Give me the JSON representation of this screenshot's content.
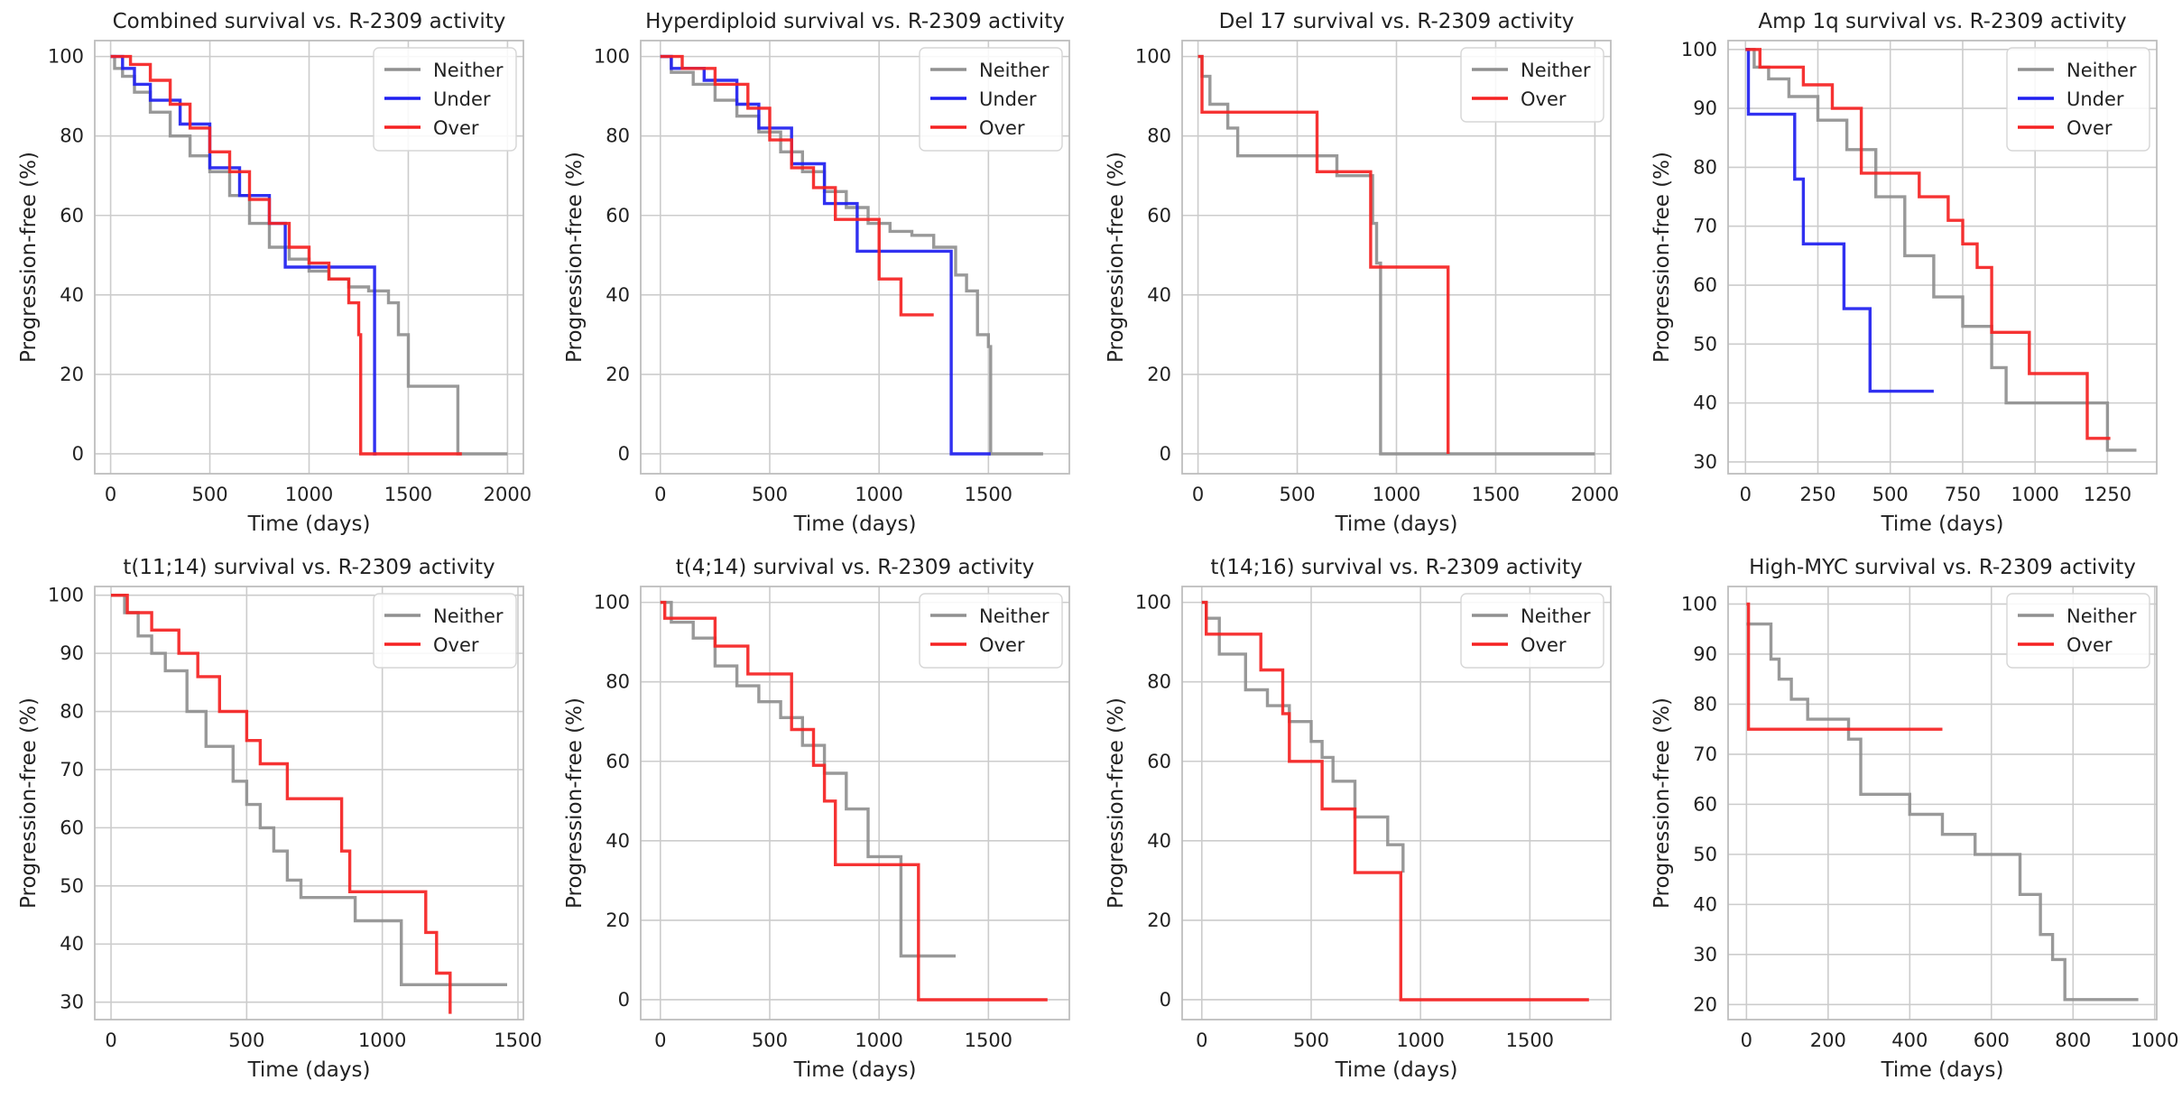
{
  "colors": {
    "Neither": "#909090",
    "Under": "#1f1ff0",
    "Over": "#f52222",
    "grid": "#cccccc",
    "frame": "#bdbdbd"
  },
  "chart_data": [
    {
      "type": "line",
      "step": true,
      "title": "Combined survival vs. R-2309 activity",
      "xlabel": "Time (days)",
      "ylabel": "Progression-free (%)",
      "xlim": [
        -80,
        2080
      ],
      "ylim": [
        -5,
        104
      ],
      "xticks": [
        0,
        500,
        1000,
        1500,
        2000
      ],
      "yticks": [
        0,
        20,
        40,
        60,
        80,
        100
      ],
      "legend": "top-right",
      "grid": true,
      "series": [
        {
          "name": "Neither",
          "x": [
            0,
            20,
            60,
            120,
            200,
            300,
            400,
            500,
            600,
            700,
            800,
            900,
            1000,
            1100,
            1200,
            1300,
            1400,
            1450,
            1500,
            1750,
            2000
          ],
          "y": [
            100,
            97,
            95,
            91,
            86,
            80,
            75,
            71,
            65,
            58,
            52,
            49,
            46,
            44,
            42,
            41,
            38,
            30,
            17,
            0,
            0
          ]
        },
        {
          "name": "Under",
          "x": [
            0,
            60,
            120,
            200,
            350,
            500,
            650,
            800,
            880,
            1330,
            1340
          ],
          "y": [
            100,
            97,
            93,
            89,
            83,
            72,
            65,
            58,
            47,
            0,
            0
          ]
        },
        {
          "name": "Over",
          "x": [
            0,
            100,
            200,
            300,
            400,
            500,
            600,
            700,
            800,
            900,
            1000,
            1100,
            1200,
            1250,
            1260,
            1770
          ],
          "y": [
            100,
            98,
            94,
            88,
            82,
            76,
            71,
            64,
            58,
            52,
            48,
            44,
            38,
            30,
            0,
            0
          ]
        }
      ]
    },
    {
      "type": "line",
      "step": true,
      "title": "Hyperdiploid survival vs. R-2309 activity",
      "xlabel": "Time (days)",
      "ylabel": "Progression-free (%)",
      "xlim": [
        -90,
        1870
      ],
      "ylim": [
        -5,
        104
      ],
      "xticks": [
        0,
        500,
        1000,
        1500
      ],
      "yticks": [
        0,
        20,
        40,
        60,
        80,
        100
      ],
      "legend": "top-right",
      "grid": true,
      "series": [
        {
          "name": "Neither",
          "x": [
            0,
            50,
            150,
            250,
            350,
            450,
            550,
            650,
            750,
            850,
            950,
            1050,
            1150,
            1250,
            1350,
            1400,
            1450,
            1500,
            1510,
            1750
          ],
          "y": [
            100,
            96,
            93,
            89,
            85,
            81,
            76,
            71,
            66,
            62,
            58,
            56,
            55,
            52,
            45,
            41,
            30,
            27,
            0,
            0
          ]
        },
        {
          "name": "Under",
          "x": [
            0,
            50,
            200,
            350,
            450,
            600,
            750,
            900,
            1330,
            1340,
            1510
          ],
          "y": [
            100,
            97,
            94,
            88,
            82,
            73,
            63,
            51,
            0,
            0,
            0
          ]
        },
        {
          "name": "Over",
          "x": [
            0,
            100,
            250,
            400,
            500,
            600,
            700,
            800,
            1000,
            1100,
            1250
          ],
          "y": [
            100,
            97,
            93,
            87,
            79,
            72,
            67,
            59,
            44,
            35,
            35
          ]
        }
      ]
    },
    {
      "type": "line",
      "step": true,
      "title": "Del 17 survival vs. R-2309 activity",
      "xlabel": "Time (days)",
      "ylabel": "Progression-free (%)",
      "xlim": [
        -80,
        2080
      ],
      "ylim": [
        -5,
        104
      ],
      "xticks": [
        0,
        500,
        1000,
        1500,
        2000
      ],
      "yticks": [
        0,
        20,
        40,
        60,
        80,
        100
      ],
      "legend": "top-right",
      "grid": true,
      "series": [
        {
          "name": "Neither",
          "x": [
            0,
            20,
            60,
            150,
            200,
            500,
            700,
            880,
            900,
            920,
            2000
          ],
          "y": [
            100,
            95,
            88,
            82,
            75,
            75,
            70,
            58,
            48,
            0,
            0
          ]
        },
        {
          "name": "Over",
          "x": [
            0,
            20,
            370,
            600,
            870,
            1260
          ],
          "y": [
            100,
            86,
            86,
            71,
            47,
            0
          ]
        }
      ]
    },
    {
      "type": "line",
      "step": true,
      "title": "Amp 1q survival vs. R-2309 activity",
      "xlabel": "Time (days)",
      "ylabel": "Progression-free (%)",
      "xlim": [
        -60,
        1420
      ],
      "ylim": [
        28,
        101.5
      ],
      "xticks": [
        0,
        250,
        500,
        750,
        1000,
        1250
      ],
      "yticks": [
        30,
        40,
        50,
        60,
        70,
        80,
        90,
        100
      ],
      "legend": "top-right",
      "grid": true,
      "series": [
        {
          "name": "Neither",
          "x": [
            0,
            30,
            80,
            150,
            250,
            350,
            450,
            550,
            650,
            750,
            850,
            900,
            1000,
            1200,
            1250,
            1350
          ],
          "y": [
            100,
            97,
            95,
            92,
            88,
            83,
            75,
            65,
            58,
            53,
            46,
            40,
            40,
            40,
            32,
            32
          ]
        },
        {
          "name": "Under",
          "x": [
            0,
            10,
            170,
            200,
            340,
            430,
            650
          ],
          "y": [
            100,
            89,
            78,
            67,
            56,
            42,
            42
          ]
        },
        {
          "name": "Over",
          "x": [
            0,
            50,
            200,
            300,
            400,
            600,
            700,
            750,
            800,
            850,
            980,
            1180,
            1260
          ],
          "y": [
            100,
            97,
            94,
            90,
            79,
            75,
            71,
            67,
            63,
            52,
            45,
            34,
            34
          ]
        }
      ]
    },
    {
      "type": "line",
      "step": true,
      "title": "t(11;14) survival vs. R-2309 activity",
      "xlabel": "Time (days)",
      "ylabel": "Progression-free (%)",
      "xlim": [
        -60,
        1520
      ],
      "ylim": [
        27,
        101.5
      ],
      "xticks": [
        0,
        500,
        1000,
        1500
      ],
      "yticks": [
        30,
        40,
        50,
        60,
        70,
        80,
        90,
        100
      ],
      "legend": "top-right",
      "grid": true,
      "series": [
        {
          "name": "Neither",
          "x": [
            0,
            50,
            100,
            150,
            200,
            280,
            350,
            450,
            500,
            550,
            600,
            650,
            700,
            800,
            900,
            1000,
            1070,
            1200,
            1460
          ],
          "y": [
            100,
            97,
            93,
            90,
            87,
            80,
            74,
            68,
            64,
            60,
            56,
            51,
            48,
            48,
            44,
            44,
            33,
            33,
            33
          ]
        },
        {
          "name": "Over",
          "x": [
            0,
            60,
            150,
            250,
            320,
            400,
            500,
            550,
            650,
            850,
            880,
            1100,
            1160,
            1200,
            1250
          ],
          "y": [
            100,
            97,
            94,
            90,
            86,
            80,
            75,
            71,
            65,
            56,
            49,
            49,
            42,
            35,
            28
          ]
        }
      ]
    },
    {
      "type": "line",
      "step": true,
      "title": "t(4;14) survival vs. R-2309 activity",
      "xlabel": "Time (days)",
      "ylabel": "Progression-free (%)",
      "xlim": [
        -90,
        1870
      ],
      "ylim": [
        -5,
        104
      ],
      "xticks": [
        0,
        500,
        1000,
        1500
      ],
      "yticks": [
        0,
        20,
        40,
        60,
        80,
        100
      ],
      "legend": "top-right",
      "grid": true,
      "series": [
        {
          "name": "Neither",
          "x": [
            0,
            50,
            150,
            250,
            350,
            450,
            550,
            650,
            750,
            850,
            950,
            1100,
            1350
          ],
          "y": [
            100,
            95,
            91,
            84,
            79,
            75,
            71,
            64,
            57,
            48,
            36,
            11,
            11
          ]
        },
        {
          "name": "Over",
          "x": [
            0,
            20,
            250,
            400,
            600,
            700,
            750,
            800,
            1180,
            1770
          ],
          "y": [
            100,
            96,
            89,
            82,
            68,
            59,
            50,
            34,
            0,
            0
          ]
        }
      ]
    },
    {
      "type": "line",
      "step": true,
      "title": "t(14;16) survival vs. R-2309 activity",
      "xlabel": "Time (days)",
      "ylabel": "Progression-free (%)",
      "xlim": [
        -90,
        1870
      ],
      "ylim": [
        -5,
        104
      ],
      "xticks": [
        0,
        500,
        1000,
        1500
      ],
      "yticks": [
        0,
        20,
        40,
        60,
        80,
        100
      ],
      "legend": "top-right",
      "grid": true,
      "series": [
        {
          "name": "Neither",
          "x": [
            0,
            20,
            80,
            200,
            300,
            400,
            500,
            550,
            600,
            700,
            850,
            920
          ],
          "y": [
            100,
            96,
            87,
            78,
            74,
            70,
            65,
            61,
            55,
            46,
            39,
            32
          ]
        },
        {
          "name": "Over",
          "x": [
            0,
            20,
            270,
            370,
            400,
            550,
            700,
            910,
            1770
          ],
          "y": [
            100,
            92,
            83,
            72,
            60,
            48,
            32,
            0,
            0
          ]
        }
      ]
    },
    {
      "type": "line",
      "step": true,
      "title": "High-MYC survival vs. R-2309 activity",
      "xlabel": "Time (days)",
      "ylabel": "Progression-free (%)",
      "xlim": [
        -45,
        1005
      ],
      "ylim": [
        17,
        103.5
      ],
      "xticks": [
        0,
        200,
        400,
        600,
        800,
        1000
      ],
      "yticks": [
        20,
        30,
        40,
        50,
        60,
        70,
        80,
        90,
        100
      ],
      "legend": "top-right",
      "grid": true,
      "series": [
        {
          "name": "Neither",
          "x": [
            0,
            60,
            80,
            110,
            150,
            250,
            280,
            400,
            480,
            560,
            670,
            720,
            750,
            780,
            960
          ],
          "y": [
            96,
            89,
            85,
            81,
            77,
            73,
            62,
            58,
            54,
            50,
            42,
            34,
            29,
            21,
            21
          ]
        },
        {
          "name": "Over",
          "x": [
            0,
            5,
            480
          ],
          "y": [
            100,
            75,
            75
          ]
        }
      ]
    }
  ]
}
